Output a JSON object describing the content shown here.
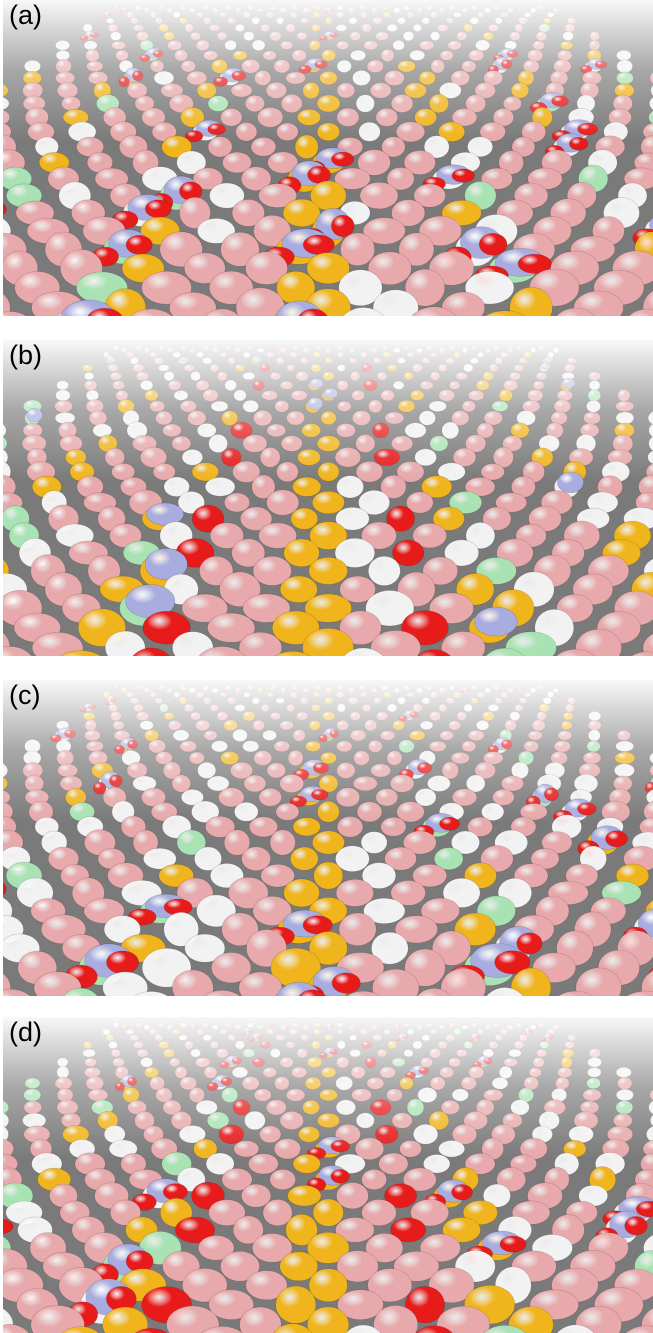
{
  "figure": {
    "panels": [
      {
        "label": "(a)"
      },
      {
        "label": "(b)"
      },
      {
        "label": "(c)"
      },
      {
        "label": "(d)"
      }
    ],
    "atom_colors": {
      "pink": "#e7a9ab",
      "white": "#f2f2f2",
      "gold": "#f0b41c",
      "green": "#a9e3b3",
      "blue": "#a9acdf",
      "red": "#e81b1b",
      "dark": "#6a6a6a"
    }
  }
}
